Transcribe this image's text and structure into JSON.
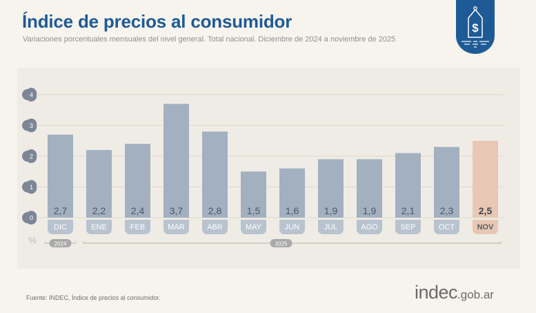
{
  "header": {
    "title": "Índice de precios al consumidor",
    "subtitle": "Variaciones porcentuales mensuales del nivel general. Total nacional. Diciembre de 2024 a noviembre de 2025",
    "logo_icon": "price-tag-dollar-icon"
  },
  "footer": {
    "source": "Fuente: INDEC, Índice de precios al consumidor.",
    "brand_main": "indec",
    "brand_suffix": ".gob.ar"
  },
  "colors": {
    "title": "#1e5a96",
    "bar": "#a3b0c0",
    "bar_highlight": "#e8c8b4",
    "label_pill": "#b9c3cf",
    "axis_badge": "#7d8597",
    "logo": "#1e5a96"
  },
  "chart_data": {
    "type": "bar",
    "title": "Índice de precios al consumidor",
    "ylabel": "%",
    "ylim": [
      0,
      4
    ],
    "yticks": [
      "0",
      "1",
      "2",
      "3",
      "4"
    ],
    "grid": true,
    "categories": [
      "DIC",
      "ENE",
      "FEB",
      "MAR",
      "ABR",
      "MAY",
      "JUN",
      "JUL",
      "AGO",
      "SEP",
      "OCT",
      "NOV"
    ],
    "values": [
      2.7,
      2.2,
      2.4,
      3.7,
      2.8,
      1.5,
      1.6,
      1.9,
      1.9,
      2.1,
      2.3,
      2.5
    ],
    "value_labels": [
      "2,7",
      "2,2",
      "2,4",
      "3,7",
      "2,8",
      "1,5",
      "1,6",
      "1,9",
      "1,9",
      "2,1",
      "2,3",
      "2,5"
    ],
    "highlight_index": 11,
    "year_groups": [
      {
        "label": "2024",
        "from": 0,
        "to": 0
      },
      {
        "label": "2025",
        "from": 1,
        "to": 11
      }
    ]
  }
}
